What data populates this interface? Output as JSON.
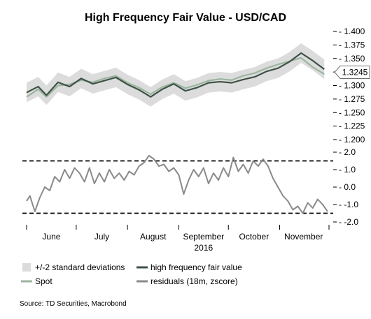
{
  "chart_data": {
    "title": "High Frequency Fair Value - USD/CAD",
    "source": "Source: TD Securities, Macrobond",
    "year_label": "2016",
    "x_month_labels": [
      "June",
      "July",
      "August",
      "September",
      "October",
      "November"
    ],
    "x_start": "2016-06-01",
    "x_end": "2016-11-30",
    "colors": {
      "band": "#dcdcdc",
      "hf_fair_value": "#3e5248",
      "spot": "#9cb59f",
      "residuals": "#8a8a8a",
      "dash": "#000000",
      "callout_border": "#707070"
    },
    "panels": [
      {
        "type": "line",
        "ylim": [
          1.2,
          1.4
        ],
        "yticks": [
          "1.400",
          "1.375",
          "1.350",
          "1.325",
          "1.300",
          "1.275",
          "1.250",
          "1.225",
          "1.200"
        ],
        "callout": "1.3245",
        "series": [
          {
            "name": "high frequency fair value",
            "points": [
              [
                "2016-06-01",
                1.287
              ],
              [
                "2016-06-08",
                1.298
              ],
              [
                "2016-06-13",
                1.282
              ],
              [
                "2016-06-20",
                1.306
              ],
              [
                "2016-06-27",
                1.298
              ],
              [
                "2016-07-04",
                1.313
              ],
              [
                "2016-07-11",
                1.303
              ],
              [
                "2016-07-18",
                1.309
              ],
              [
                "2016-07-25",
                1.315
              ],
              [
                "2016-08-01",
                1.302
              ],
              [
                "2016-08-08",
                1.292
              ],
              [
                "2016-08-15",
                1.279
              ],
              [
                "2016-08-22",
                1.293
              ],
              [
                "2016-08-29",
                1.303
              ],
              [
                "2016-09-05",
                1.29
              ],
              [
                "2016-09-12",
                1.296
              ],
              [
                "2016-09-19",
                1.305
              ],
              [
                "2016-09-26",
                1.307
              ],
              [
                "2016-10-03",
                1.305
              ],
              [
                "2016-10-10",
                1.311
              ],
              [
                "2016-10-17",
                1.316
              ],
              [
                "2016-10-24",
                1.326
              ],
              [
                "2016-10-31",
                1.332
              ],
              [
                "2016-11-07",
                1.344
              ],
              [
                "2016-11-14",
                1.36
              ],
              [
                "2016-11-21",
                1.346
              ],
              [
                "2016-11-28",
                1.33
              ]
            ]
          },
          {
            "name": "Spot",
            "points": [
              [
                "2016-06-01",
                1.279
              ],
              [
                "2016-06-08",
                1.293
              ],
              [
                "2016-06-13",
                1.279
              ],
              [
                "2016-06-20",
                1.3
              ],
              [
                "2016-06-27",
                1.302
              ],
              [
                "2016-07-04",
                1.31
              ],
              [
                "2016-07-11",
                1.306
              ],
              [
                "2016-07-18",
                1.313
              ],
              [
                "2016-07-25",
                1.318
              ],
              [
                "2016-08-01",
                1.305
              ],
              [
                "2016-08-08",
                1.296
              ],
              [
                "2016-08-15",
                1.284
              ],
              [
                "2016-08-22",
                1.297
              ],
              [
                "2016-08-29",
                1.305
              ],
              [
                "2016-09-05",
                1.295
              ],
              [
                "2016-09-12",
                1.301
              ],
              [
                "2016-09-19",
                1.309
              ],
              [
                "2016-09-26",
                1.312
              ],
              [
                "2016-10-03",
                1.31
              ],
              [
                "2016-10-10",
                1.318
              ],
              [
                "2016-10-17",
                1.323
              ],
              [
                "2016-10-24",
                1.332
              ],
              [
                "2016-10-31",
                1.339
              ],
              [
                "2016-11-07",
                1.345
              ],
              [
                "2016-11-14",
                1.351
              ],
              [
                "2016-11-21",
                1.334
              ],
              [
                "2016-11-28",
                1.321
              ]
            ]
          }
        ],
        "band": {
          "name": "+/-2 standard deviations",
          "halfwidth": 0.018
        }
      },
      {
        "type": "line",
        "ylim": [
          -2.0,
          2.0
        ],
        "yticks": [
          "2.0",
          "1.0",
          "0.0",
          "-1.0",
          "-2.0"
        ],
        "ytick_values": [
          2.0,
          1.0,
          0.0,
          -1.0,
          -2.0
        ],
        "dashed_lines": [
          1.5,
          -1.5
        ],
        "series": [
          {
            "name": "residuals (18m, zscore)",
            "points": [
              [
                "2016-06-01",
                -0.8
              ],
              [
                "2016-06-03",
                -0.5
              ],
              [
                "2016-06-06",
                -1.4
              ],
              [
                "2016-06-09",
                -0.6
              ],
              [
                "2016-06-12",
                0.0
              ],
              [
                "2016-06-15",
                -0.2
              ],
              [
                "2016-06-18",
                0.6
              ],
              [
                "2016-06-21",
                0.3
              ],
              [
                "2016-06-24",
                1.0
              ],
              [
                "2016-06-27",
                0.5
              ],
              [
                "2016-06-30",
                1.1
              ],
              [
                "2016-07-03",
                0.8
              ],
              [
                "2016-07-06",
                0.3
              ],
              [
                "2016-07-09",
                1.1
              ],
              [
                "2016-07-12",
                0.2
              ],
              [
                "2016-07-15",
                0.8
              ],
              [
                "2016-07-18",
                0.3
              ],
              [
                "2016-07-21",
                1.0
              ],
              [
                "2016-07-24",
                0.5
              ],
              [
                "2016-07-27",
                0.8
              ],
              [
                "2016-07-30",
                0.4
              ],
              [
                "2016-08-02",
                0.9
              ],
              [
                "2016-08-05",
                0.7
              ],
              [
                "2016-08-08",
                1.2
              ],
              [
                "2016-08-11",
                1.4
              ],
              [
                "2016-08-14",
                1.8
              ],
              [
                "2016-08-17",
                1.6
              ],
              [
                "2016-08-20",
                1.2
              ],
              [
                "2016-08-23",
                1.3
              ],
              [
                "2016-08-26",
                0.9
              ],
              [
                "2016-08-29",
                1.1
              ],
              [
                "2016-09-01",
                0.7
              ],
              [
                "2016-09-04",
                -0.4
              ],
              [
                "2016-09-07",
                0.4
              ],
              [
                "2016-09-10",
                1.0
              ],
              [
                "2016-09-13",
                0.6
              ],
              [
                "2016-09-16",
                1.1
              ],
              [
                "2016-09-19",
                0.2
              ],
              [
                "2016-09-22",
                0.8
              ],
              [
                "2016-09-25",
                0.4
              ],
              [
                "2016-09-28",
                1.1
              ],
              [
                "2016-10-01",
                0.6
              ],
              [
                "2016-10-04",
                1.7
              ],
              [
                "2016-10-07",
                0.9
              ],
              [
                "2016-10-10",
                1.3
              ],
              [
                "2016-10-13",
                0.8
              ],
              [
                "2016-10-16",
                1.5
              ],
              [
                "2016-10-19",
                1.2
              ],
              [
                "2016-10-22",
                1.6
              ],
              [
                "2016-10-25",
                1.2
              ],
              [
                "2016-10-28",
                0.5
              ],
              [
                "2016-10-31",
                0.0
              ],
              [
                "2016-11-03",
                -0.5
              ],
              [
                "2016-11-06",
                -0.8
              ],
              [
                "2016-11-09",
                -1.3
              ],
              [
                "2016-11-12",
                -1.1
              ],
              [
                "2016-11-15",
                -1.5
              ],
              [
                "2016-11-18",
                -0.9
              ],
              [
                "2016-11-21",
                -1.2
              ],
              [
                "2016-11-24",
                -0.7
              ],
              [
                "2016-11-27",
                -1.0
              ],
              [
                "2016-11-30",
                -1.4
              ]
            ]
          }
        ]
      }
    ],
    "legend": [
      {
        "label": "+/-2 standard deviations",
        "kind": "swatch"
      },
      {
        "label": "high frequency fair value",
        "kind": "line"
      },
      {
        "label": "Spot",
        "kind": "line"
      },
      {
        "label": "residuals (18m, zscore)",
        "kind": "line"
      }
    ]
  }
}
